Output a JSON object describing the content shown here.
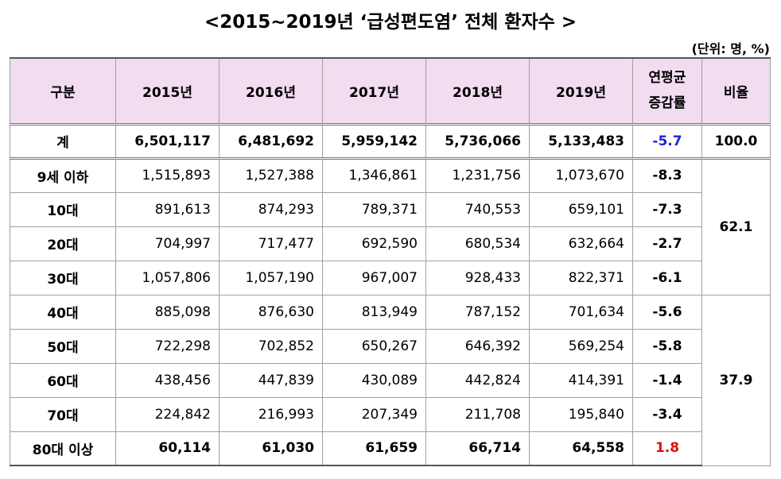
{
  "title": "<2015~2019년 ‘급성편도염’ 전체 환자수 >",
  "unit": "(단위: 명, %)",
  "table": {
    "header": [
      "구분",
      "2015년",
      "2016년",
      "2017년",
      "2018년",
      "2019년",
      [
        "연평균",
        "증감률"
      ],
      "비율"
    ],
    "rows": [
      [
        "계",
        "6,501,117",
        "6,481,692",
        "5,959,142",
        "5,736,066",
        "5,133,483",
        "-5.7"
      ],
      [
        "9세 이하",
        "1,515,893",
        "1,527,388",
        "1,346,861",
        "1,231,756",
        "1,073,670",
        "-8.3"
      ],
      [
        "10대",
        "891,613",
        "874,293",
        "789,371",
        "740,553",
        "659,101",
        "-7.3"
      ],
      [
        "20대",
        "704,997",
        "717,477",
        "692,590",
        "680,534",
        "632,664",
        "-2.7"
      ],
      [
        "30대",
        "1,057,806",
        "1,057,190",
        "967,007",
        "928,433",
        "822,371",
        "-6.1"
      ],
      [
        "40대",
        "885,098",
        "876,630",
        "813,949",
        "787,152",
        "701,634",
        "-5.6"
      ],
      [
        "50대",
        "722,298",
        "702,852",
        "650,267",
        "646,392",
        "569,254",
        "-5.8"
      ],
      [
        "60대",
        "438,456",
        "447,839",
        "430,089",
        "442,824",
        "414,391",
        "-1.4"
      ],
      [
        "70대",
        "224,842",
        "216,993",
        "207,349",
        "211,708",
        "195,840",
        "-3.4"
      ],
      [
        "80대 이상",
        "60,114",
        "61,030",
        "61,659",
        "66,714",
        "64,558",
        "1.8"
      ]
    ],
    "ratios": [
      "100.0",
      "62.1",
      "37.9"
    ]
  }
}
